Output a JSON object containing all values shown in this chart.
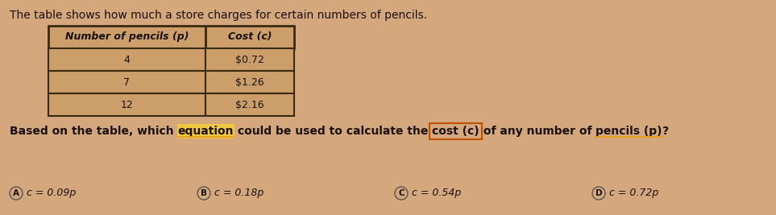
{
  "background_color": "#d4a87c",
  "intro_text": "The table shows how much a store charges for certain numbers of pencils.",
  "table_headers": [
    "Number of pencils (p)",
    "Cost (c)"
  ],
  "table_rows": [
    [
      "4",
      "$0.72"
    ],
    [
      "7",
      "$1.26"
    ],
    [
      "12",
      "$2.16"
    ]
  ],
  "options": [
    {
      "label": "A",
      "text": "c = 0.09p"
    },
    {
      "label": "B",
      "text": "c = 0.18p"
    },
    {
      "label": "C",
      "text": "c = 0.54p"
    },
    {
      "label": "D",
      "text": "c = 0.72p"
    }
  ],
  "table_bg": "#cc9e6a",
  "table_border_color": "#3a2a10",
  "text_color": "#1a1010",
  "circle_edge_color": "#555555",
  "underline_color": "#e8a020",
  "box_color": "#c05000",
  "intro_fontsize": 10,
  "question_fontsize": 10,
  "table_fontsize": 9,
  "option_fontsize": 9
}
